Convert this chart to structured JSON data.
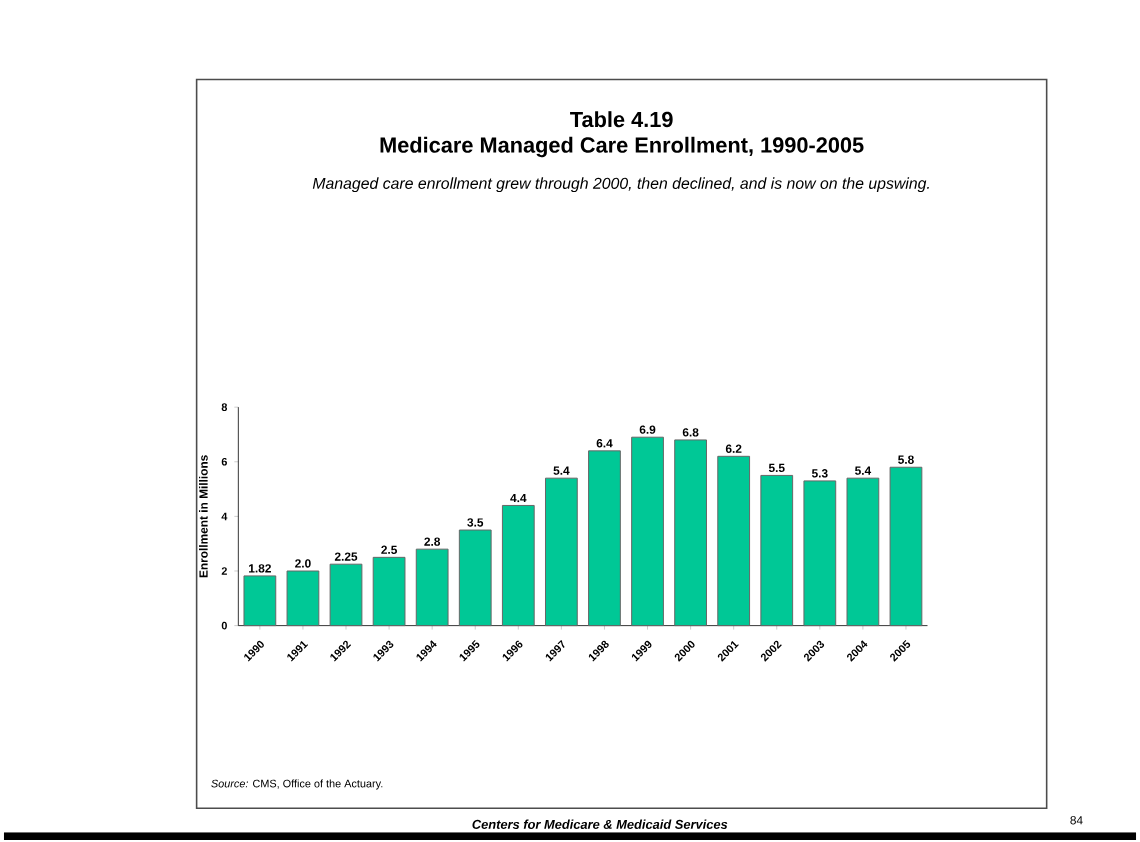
{
  "chart_data": {
    "type": "bar",
    "title": "Medicare Managed Care Enrollment, 1990-2005",
    "subtitle": "Managed care enrollment grew through 2000, then declined, and is now on the upswing.",
    "ylabel": "Enrollment in Millions",
    "categories": [
      "1990",
      "1991",
      "1992",
      "1993",
      "1994",
      "1995",
      "1996",
      "1997",
      "1998",
      "1999",
      "2000",
      "2001",
      "2002",
      "2003",
      "2004",
      "2005"
    ],
    "values": [
      1.82,
      2.0,
      2.25,
      2.5,
      2.8,
      3.5,
      4.4,
      5.4,
      6.4,
      6.9,
      6.8,
      6.2,
      5.5,
      5.3,
      5.4,
      5.8
    ],
    "value_labels": [
      "1.82",
      "2.0",
      "2.25",
      "2.5",
      "2.8",
      "3.5",
      "4.4",
      "5.4",
      "6.4",
      "6.9",
      "6.8",
      "6.2",
      "5.5",
      "5.3",
      "5.4",
      "5.8"
    ],
    "color": "#00c896",
    "ylim": [
      0,
      8
    ],
    "yticks": [
      0,
      2,
      4,
      6,
      8
    ],
    "grid": false,
    "annotations": [
      "Table 4.19",
      "*Source:* CMS, Office of the Actuary.",
      "Centers for Medicare & Medicaid Services",
      "84"
    ]
  }
}
